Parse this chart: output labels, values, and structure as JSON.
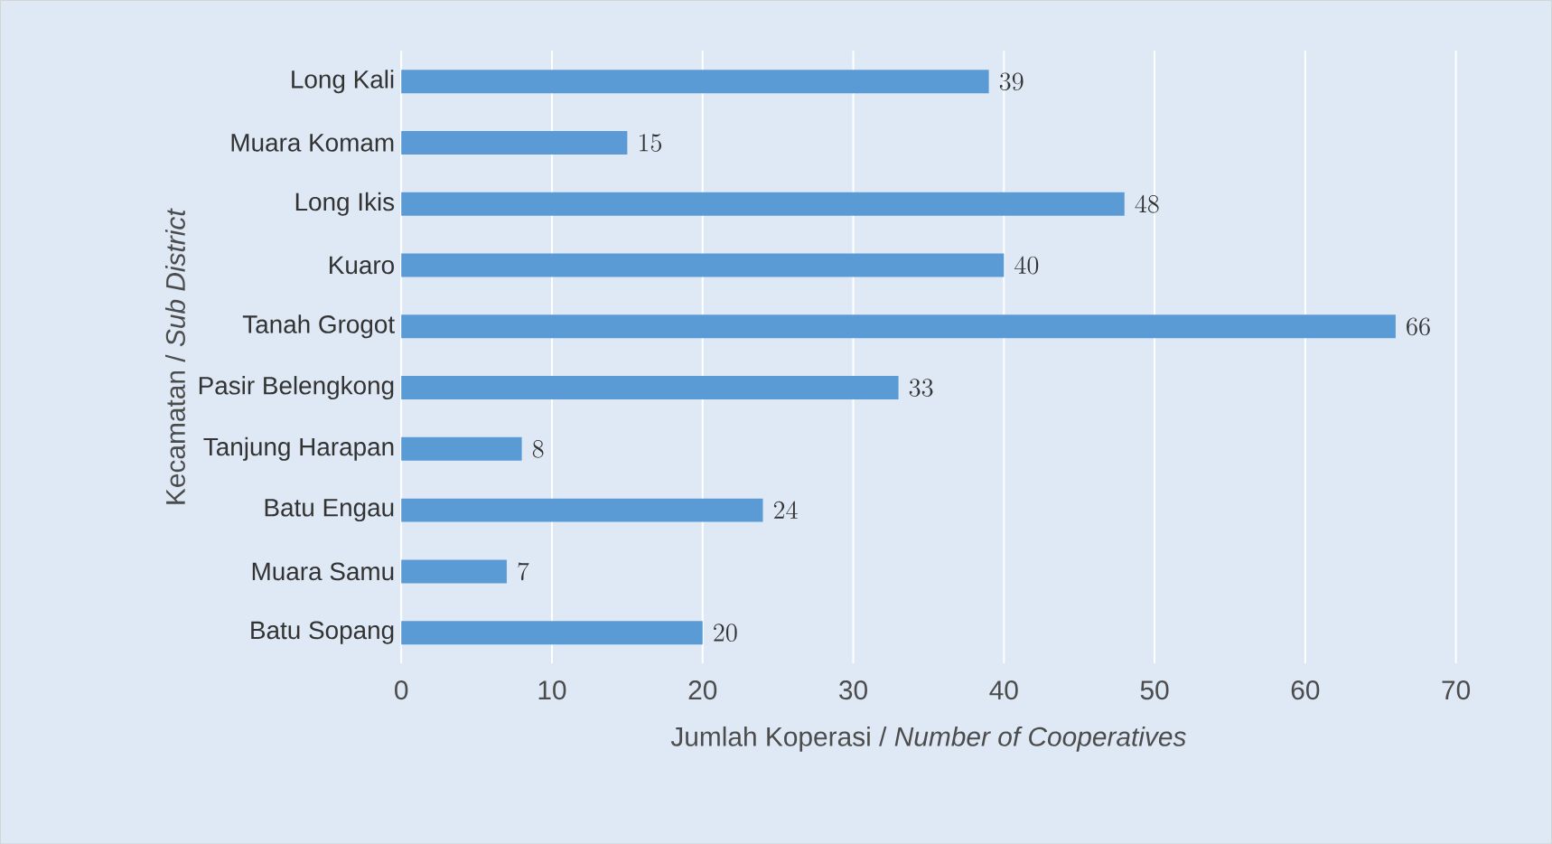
{
  "chart_data": {
    "type": "bar",
    "orientation": "horizontal",
    "xlabel": "Jumlah Koperasi / *Number of Cooperatives*",
    "ylabel": "Kecamatan / *Sub District*",
    "categories": [
      "Long Kali",
      "Muara Komam",
      "Long Ikis",
      "Kuaro",
      "Tanah Grogot",
      "Pasir Belengkong",
      "Tanjung Harapan",
      "Batu Engau",
      "Muara Samu",
      "Batu Sopang"
    ],
    "values": [
      39,
      15,
      48,
      40,
      66,
      33,
      8,
      24,
      7,
      20
    ],
    "color": "#5b9bd5",
    "xlim": [
      0,
      70
    ],
    "xticks": [
      0,
      10,
      20,
      30,
      40,
      50,
      60,
      70
    ],
    "grid": "x",
    "data_labels": true
  }
}
